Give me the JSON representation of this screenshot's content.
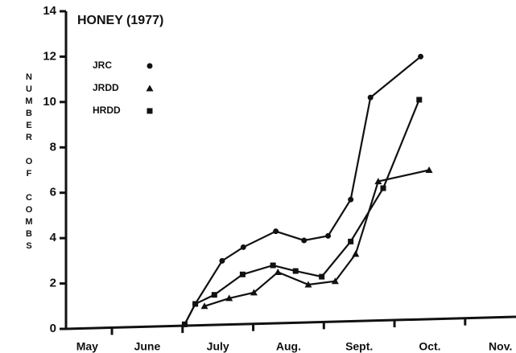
{
  "chart_data": {
    "type": "line",
    "title": "HONEY (1977)",
    "y_label": "NUMBER OF COMBS",
    "categories": [
      "May",
      "June",
      "July",
      "Aug.",
      "Sept.",
      "Oct.",
      "Nov."
    ],
    "xlim": [
      0.35,
      6.72
    ],
    "xticks": [
      1,
      2,
      3,
      4,
      5,
      6
    ],
    "ylim": [
      0,
      14
    ],
    "yticks": [
      0,
      2,
      4,
      6,
      8,
      10,
      12,
      14
    ],
    "series": [
      {
        "name": "JRC",
        "marker": "circle",
        "color": "#111111",
        "x": [
          2.03,
          2.18,
          2.56,
          2.86,
          3.32,
          3.72,
          4.06,
          4.38,
          4.66,
          5.37
        ],
        "values": [
          0.2,
          1.1,
          3.0,
          3.6,
          4.3,
          3.9,
          4.1,
          5.7,
          10.2,
          12.0
        ]
      },
      {
        "name": "JRDD",
        "marker": "triangle",
        "color": "#111111",
        "x": [
          2.31,
          2.66,
          3.01,
          3.35,
          3.78,
          4.16,
          4.45,
          4.77,
          5.49
        ],
        "values": [
          1.0,
          1.35,
          1.6,
          2.5,
          1.95,
          2.1,
          3.3,
          6.5,
          7.0
        ]
      },
      {
        "name": "HRDD",
        "marker": "square",
        "color": "#111111",
        "x": [
          2.03,
          2.18,
          2.45,
          2.85,
          3.28,
          3.6,
          3.97,
          4.38,
          4.84,
          5.35
        ],
        "values": [
          0.2,
          1.1,
          1.5,
          2.4,
          2.8,
          2.55,
          2.3,
          3.85,
          6.2,
          10.1
        ]
      }
    ]
  }
}
